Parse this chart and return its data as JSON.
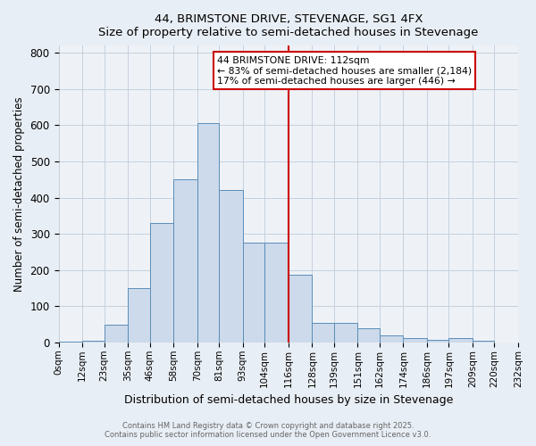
{
  "title": "44, BRIMSTONE DRIVE, STEVENAGE, SG1 4FX",
  "subtitle": "Size of property relative to semi-detached houses in Stevenage",
  "xlabel": "Distribution of semi-detached houses by size in Stevenage",
  "ylabel": "Number of semi-detached properties",
  "bin_labels": [
    "0sqm",
    "12sqm",
    "23sqm",
    "35sqm",
    "46sqm",
    "58sqm",
    "70sqm",
    "81sqm",
    "93sqm",
    "104sqm",
    "116sqm",
    "128sqm",
    "139sqm",
    "151sqm",
    "162sqm",
    "174sqm",
    "186sqm",
    "197sqm",
    "209sqm",
    "220sqm",
    "232sqm"
  ],
  "bar_values": [
    2,
    5,
    48,
    150,
    330,
    450,
    605,
    420,
    275,
    275,
    188,
    55,
    55,
    38,
    20,
    12,
    8,
    12,
    5,
    0
  ],
  "bar_color": "#ccdaeb",
  "bar_edge_color": "#5b8db8",
  "vline_x_label": "116sqm",
  "vline_color": "#cc0000",
  "annotation_title": "44 BRIMSTONE DRIVE: 112sqm",
  "annotation_line1": "← 83% of semi-detached houses are smaller (2,184)",
  "annotation_line2": "17% of semi-detached houses are larger (446) →",
  "annotation_box_color": "#cc0000",
  "ylim": [
    0,
    820
  ],
  "yticks": [
    0,
    100,
    200,
    300,
    400,
    500,
    600,
    700,
    800
  ],
  "footer1": "Contains HM Land Registry data © Crown copyright and database right 2025.",
  "footer2": "Contains public sector information licensed under the Open Government Licence v3.0.",
  "bg_color": "#e8eef5",
  "plot_bg_color": "#eef2f7",
  "grid_color": "#c5d0dd"
}
